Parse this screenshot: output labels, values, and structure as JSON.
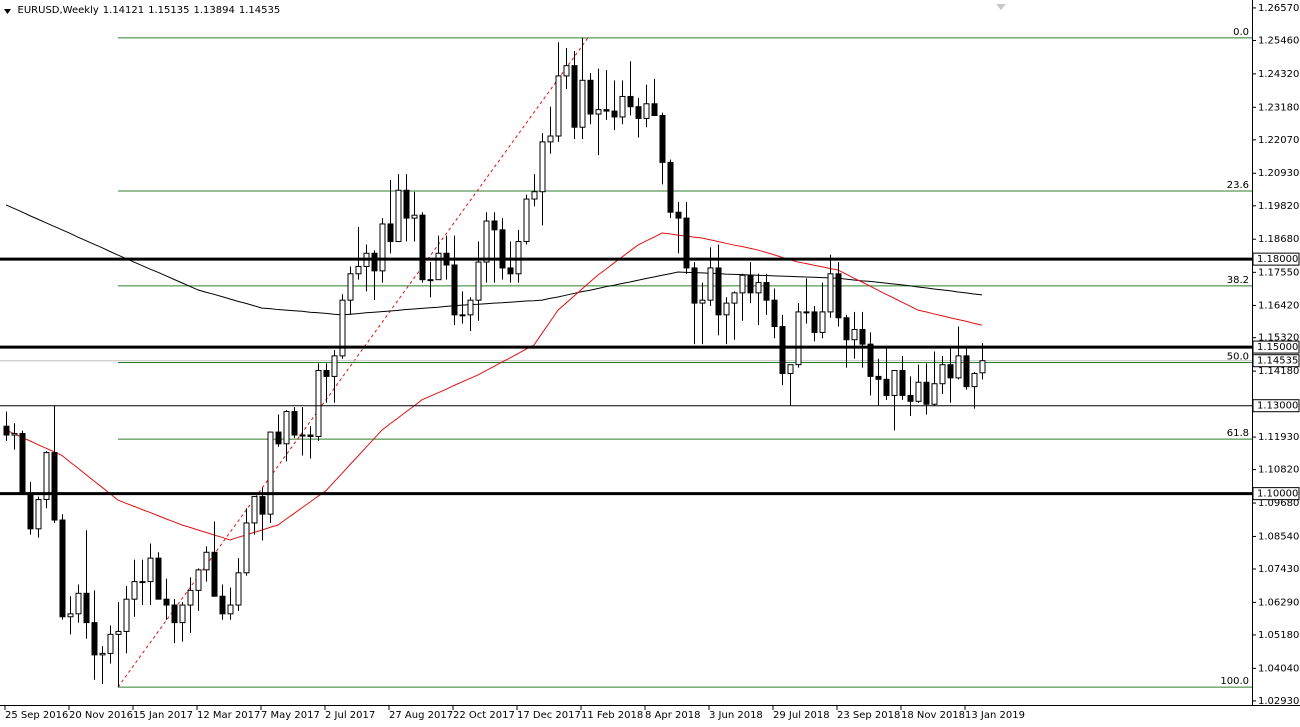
{
  "chart_data": {
    "type": "candlestick",
    "title": "EURUSD,Weekly",
    "categories": [
      "25 Sep 2016",
      null,
      null,
      null,
      null,
      null,
      null,
      null,
      "20 Nov 2016",
      null,
      null,
      null,
      null,
      null,
      null,
      null,
      "15 Jan 2017",
      null,
      null,
      null,
      null,
      null,
      null,
      null,
      "12 Mar 2017",
      null,
      null,
      null,
      null,
      null,
      null,
      null,
      "7 May 2017",
      null,
      null,
      null,
      null,
      null,
      null,
      null,
      "2 Jul 2017",
      null,
      null,
      null,
      null,
      null,
      null,
      null,
      "27 Aug 2017",
      null,
      null,
      null,
      null,
      null,
      null,
      null,
      "22 Oct 2017",
      null,
      null,
      null,
      null,
      null,
      null,
      null,
      "17 Dec 2017",
      null,
      null,
      null,
      null,
      null,
      null,
      null,
      "11 Feb 2018",
      null,
      null,
      null,
      null,
      null,
      null,
      null,
      "8 Apr 2018",
      null,
      null,
      null,
      null,
      null,
      null,
      null,
      "3 Jun 2018",
      null,
      null,
      null,
      null,
      null,
      null,
      null,
      "29 Jul 2018",
      null,
      null,
      null,
      null,
      null,
      null,
      null,
      "23 Sep 2018",
      null,
      null,
      null,
      null,
      null,
      null,
      null,
      "18 Nov 2018",
      null,
      null,
      null,
      null,
      null,
      null,
      null,
      "13 Jan 2019",
      null,
      null
    ],
    "ohlc": [
      [
        1.123,
        1.128,
        1.118,
        1.12
      ],
      [
        1.12,
        1.124,
        1.115,
        1.1205
      ],
      [
        1.1205,
        1.1215,
        1.1,
        1.1
      ],
      [
        1.1,
        1.104,
        1.086,
        1.088
      ],
      [
        1.088,
        1.099,
        1.085,
        1.098
      ],
      [
        1.098,
        1.1145,
        1.095,
        1.114
      ],
      [
        1.114,
        1.13,
        1.09,
        1.091
      ],
      [
        1.091,
        1.093,
        1.057,
        1.058
      ],
      [
        1.058,
        1.065,
        1.052,
        1.059
      ],
      [
        1.059,
        1.069,
        1.056,
        1.066
      ],
      [
        1.066,
        1.0875,
        1.0505,
        1.056
      ],
      [
        1.056,
        1.067,
        1.0365,
        1.045
      ],
      [
        1.045,
        1.048,
        1.035,
        1.0455
      ],
      [
        1.0455,
        1.055,
        1.042,
        1.052
      ],
      [
        1.052,
        1.063,
        1.034,
        1.053
      ],
      [
        1.053,
        1.0685,
        1.0455,
        1.064
      ],
      [
        1.064,
        1.0775,
        1.058,
        1.07
      ],
      [
        1.07,
        1.0775,
        1.062,
        1.07
      ],
      [
        1.07,
        1.083,
        1.062,
        1.078
      ],
      [
        1.078,
        1.08,
        1.064,
        1.064
      ],
      [
        1.064,
        1.071,
        1.057,
        1.062
      ],
      [
        1.062,
        1.064,
        1.049,
        1.056
      ],
      [
        1.056,
        1.063,
        1.0495,
        1.062
      ],
      [
        1.062,
        1.0715,
        1.0525,
        1.067
      ],
      [
        1.067,
        1.0745,
        1.06,
        1.074
      ],
      [
        1.074,
        1.082,
        1.07,
        1.08
      ],
      [
        1.08,
        1.0905,
        1.065,
        1.065
      ],
      [
        1.065,
        1.069,
        1.057,
        1.059
      ],
      [
        1.059,
        1.068,
        1.057,
        1.062
      ],
      [
        1.062,
        1.078,
        1.06,
        1.073
      ],
      [
        1.073,
        1.095,
        1.072,
        1.09
      ],
      [
        1.09,
        1.099,
        1.086,
        1.099
      ],
      [
        1.099,
        1.102,
        1.084,
        1.093
      ],
      [
        1.093,
        1.121,
        1.09,
        1.121
      ],
      [
        1.121,
        1.127,
        1.116,
        1.117
      ],
      [
        1.117,
        1.1285,
        1.111,
        1.128
      ],
      [
        1.128,
        1.1295,
        1.119,
        1.12
      ],
      [
        1.12,
        1.1295,
        1.113,
        1.12
      ],
      [
        1.12,
        1.123,
        1.112,
        1.1195
      ],
      [
        1.1195,
        1.1445,
        1.118,
        1.142
      ],
      [
        1.142,
        1.1445,
        1.131,
        1.14
      ],
      [
        1.14,
        1.149,
        1.131,
        1.147
      ],
      [
        1.147,
        1.168,
        1.146,
        1.166
      ],
      [
        1.166,
        1.1775,
        1.161,
        1.175
      ],
      [
        1.175,
        1.191,
        1.173,
        1.1775
      ],
      [
        1.1775,
        1.185,
        1.169,
        1.182
      ],
      [
        1.182,
        1.183,
        1.166,
        1.176
      ],
      [
        1.176,
        1.194,
        1.172,
        1.192
      ],
      [
        1.192,
        1.207,
        1.182,
        1.186
      ],
      [
        1.186,
        1.209,
        1.186,
        1.2035
      ],
      [
        1.2035,
        1.209,
        1.186,
        1.194
      ],
      [
        1.194,
        1.203,
        1.186,
        1.195
      ],
      [
        1.195,
        1.196,
        1.172,
        1.173
      ],
      [
        1.173,
        1.179,
        1.167,
        1.173
      ],
      [
        1.173,
        1.188,
        1.173,
        1.182
      ],
      [
        1.182,
        1.188,
        1.173,
        1.178
      ],
      [
        1.178,
        1.188,
        1.1575,
        1.161
      ],
      [
        1.161,
        1.169,
        1.158,
        1.161
      ],
      [
        1.161,
        1.167,
        1.1555,
        1.166
      ],
      [
        1.166,
        1.186,
        1.159,
        1.179
      ],
      [
        1.179,
        1.196,
        1.172,
        1.193
      ],
      [
        1.193,
        1.196,
        1.172,
        1.19
      ],
      [
        1.19,
        1.194,
        1.173,
        1.177
      ],
      [
        1.177,
        1.186,
        1.172,
        1.175
      ],
      [
        1.175,
        1.19,
        1.172,
        1.186
      ],
      [
        1.186,
        1.202,
        1.185,
        1.2005
      ],
      [
        1.2005,
        1.209,
        1.198,
        1.203
      ],
      [
        1.203,
        1.223,
        1.1915,
        1.22
      ],
      [
        1.22,
        1.232,
        1.216,
        1.222
      ],
      [
        1.222,
        1.254,
        1.22,
        1.2425
      ],
      [
        1.2425,
        1.252,
        1.238,
        1.246
      ],
      [
        1.246,
        1.251,
        1.221,
        1.225
      ],
      [
        1.225,
        1.2555,
        1.221,
        1.241
      ],
      [
        1.241,
        1.2435,
        1.226,
        1.2295
      ],
      [
        1.2295,
        1.245,
        1.2155,
        1.231
      ],
      [
        1.231,
        1.2445,
        1.2275,
        1.2305
      ],
      [
        1.2305,
        1.241,
        1.224,
        1.2285
      ],
      [
        1.2285,
        1.241,
        1.226,
        1.2355
      ],
      [
        1.2355,
        1.2475,
        1.229,
        1.232
      ],
      [
        1.232,
        1.235,
        1.2215,
        1.228
      ],
      [
        1.228,
        1.2395,
        1.225,
        1.233
      ],
      [
        1.233,
        1.2415,
        1.229,
        1.229
      ],
      [
        1.229,
        1.23,
        1.2055,
        1.213
      ],
      [
        1.213,
        1.214,
        1.194,
        1.196
      ],
      [
        1.196,
        1.1995,
        1.182,
        1.194
      ],
      [
        1.194,
        1.1995,
        1.175,
        1.177
      ],
      [
        1.177,
        1.179,
        1.151,
        1.165
      ],
      [
        1.165,
        1.172,
        1.151,
        1.166
      ],
      [
        1.166,
        1.184,
        1.164,
        1.177
      ],
      [
        1.177,
        1.185,
        1.154,
        1.161
      ],
      [
        1.161,
        1.167,
        1.151,
        1.165
      ],
      [
        1.165,
        1.169,
        1.1525,
        1.1685
      ],
      [
        1.1685,
        1.175,
        1.159,
        1.1745
      ],
      [
        1.1745,
        1.179,
        1.165,
        1.1685
      ],
      [
        1.1685,
        1.175,
        1.1575,
        1.172
      ],
      [
        1.172,
        1.175,
        1.161,
        1.166
      ],
      [
        1.166,
        1.17,
        1.153,
        1.157
      ],
      [
        1.157,
        1.161,
        1.137,
        1.141
      ],
      [
        1.141,
        1.144,
        1.13,
        1.144
      ],
      [
        1.144,
        1.165,
        1.143,
        1.162
      ],
      [
        1.162,
        1.1735,
        1.158,
        1.162
      ],
      [
        1.162,
        1.164,
        1.152,
        1.155
      ],
      [
        1.155,
        1.172,
        1.153,
        1.162
      ],
      [
        1.162,
        1.1815,
        1.16,
        1.175
      ],
      [
        1.175,
        1.179,
        1.157,
        1.16
      ],
      [
        1.16,
        1.161,
        1.143,
        1.1525
      ],
      [
        1.1525,
        1.162,
        1.146,
        1.156
      ],
      [
        1.156,
        1.162,
        1.143,
        1.151
      ],
      [
        1.151,
        1.155,
        1.1335,
        1.14
      ],
      [
        1.14,
        1.146,
        1.13,
        1.139
      ],
      [
        1.139,
        1.15,
        1.132,
        1.1335
      ],
      [
        1.1335,
        1.142,
        1.1216,
        1.142
      ],
      [
        1.142,
        1.147,
        1.132,
        1.1335
      ],
      [
        1.1335,
        1.14,
        1.1265,
        1.1315
      ],
      [
        1.1315,
        1.144,
        1.131,
        1.138
      ],
      [
        1.138,
        1.1445,
        1.127,
        1.1305
      ],
      [
        1.1305,
        1.1485,
        1.13,
        1.1375
      ],
      [
        1.1375,
        1.147,
        1.134,
        1.144
      ],
      [
        1.144,
        1.15,
        1.131,
        1.1395
      ],
      [
        1.1395,
        1.157,
        1.139,
        1.147
      ],
      [
        1.147,
        1.15,
        1.1355,
        1.1365
      ],
      [
        1.1365,
        1.1415,
        1.129,
        1.141
      ],
      [
        1.14121,
        1.15135,
        1.13894,
        1.14535
      ]
    ],
    "up_color": "#ffffff",
    "down_color": "#000000",
    "moving_averages": [
      {
        "color": "#000000",
        "values": [
          1.1985,
          1.1973,
          1.1961,
          1.1948,
          1.1936,
          1.1924,
          1.1912,
          1.19,
          1.1888,
          1.1875,
          1.1863,
          1.1851,
          1.1839,
          1.1826,
          1.1814,
          1.1802,
          1.179,
          1.1778,
          1.1766,
          1.1755,
          1.1743,
          1.1731,
          1.1719,
          1.1707,
          1.1695,
          1.1687,
          1.168,
          1.1672,
          1.1664,
          1.1656,
          1.1649,
          1.1641,
          1.1633,
          1.1631,
          1.1628,
          1.1626,
          1.1624,
          1.1622,
          1.1619,
          1.1617,
          1.1615,
          1.1612,
          1.161,
          1.1612,
          1.1614,
          1.1617,
          1.1619,
          1.1621,
          1.1623,
          1.1625,
          1.1628,
          1.163,
          1.1632,
          1.1634,
          1.1636,
          1.1639,
          1.1641,
          1.1643,
          1.1645,
          1.1646,
          1.1648,
          1.165,
          1.1651,
          1.1653,
          1.1655,
          1.1657,
          1.1658,
          1.166,
          1.1666,
          1.1671,
          1.1677,
          1.1683,
          1.1689,
          1.1694,
          1.17,
          1.1706,
          1.1711,
          1.1717,
          1.1722,
          1.1728,
          1.1734,
          1.1739,
          1.1745,
          1.175,
          1.1756,
          1.1755,
          1.1754,
          1.1753,
          1.1752,
          1.1751,
          1.1749,
          1.1748,
          1.1747,
          1.1746,
          1.1745,
          1.1744,
          1.1743,
          1.1742,
          1.1741,
          1.174,
          1.1739,
          1.1738,
          1.1737,
          1.1736,
          1.1735,
          1.1732,
          1.1729,
          1.1726,
          1.1724,
          1.1721,
          1.1718,
          1.1715,
          1.1712,
          1.1709,
          1.1705,
          1.1702,
          1.1698,
          1.1695,
          1.1692,
          1.1688,
          1.1685,
          1.1681,
          1.1678
        ]
      },
      {
        "color": "#e01010",
        "values": [
          1.1217,
          1.1205,
          1.1192,
          1.118,
          1.1167,
          1.1155,
          1.1143,
          1.113,
          1.1108,
          1.1087,
          1.1065,
          1.1043,
          1.1022,
          1.1,
          1.0978,
          1.0967,
          1.0957,
          1.0946,
          1.0936,
          1.0925,
          1.0914,
          1.0904,
          1.0893,
          1.0885,
          1.0876,
          1.0868,
          1.0859,
          1.0851,
          1.0842,
          1.0851,
          1.0859,
          1.0868,
          1.0876,
          1.0885,
          1.0893,
          1.0913,
          1.0932,
          1.0952,
          1.0971,
          1.0991,
          1.101,
          1.104,
          1.1069,
          1.1099,
          1.1128,
          1.1158,
          1.1187,
          1.1217,
          1.1238,
          1.1258,
          1.1279,
          1.1299,
          1.132,
          1.1332,
          1.1344,
          1.1356,
          1.1369,
          1.1381,
          1.1393,
          1.1405,
          1.142,
          1.1434,
          1.1449,
          1.1463,
          1.1478,
          1.1493,
          1.1507,
          1.1547,
          1.1586,
          1.1626,
          1.165,
          1.1674,
          1.1698,
          1.1722,
          1.1746,
          1.1766,
          1.1787,
          1.1807,
          1.1828,
          1.1848,
          1.1862,
          1.1875,
          1.1889,
          1.1886,
          1.1882,
          1.1879,
          1.1875,
          1.1872,
          1.1866,
          1.186,
          1.1854,
          1.1848,
          1.1843,
          1.1837,
          1.1831,
          1.1823,
          1.1815,
          1.1806,
          1.1798,
          1.179,
          1.1785,
          1.1779,
          1.1774,
          1.1768,
          1.1763,
          1.1749,
          1.1735,
          1.1722,
          1.1708,
          1.1694,
          1.168,
          1.1667,
          1.1653,
          1.164,
          1.1626,
          1.162,
          1.1613,
          1.1607,
          1.16,
          1.1594,
          1.1588,
          1.1581,
          1.1575
        ]
      }
    ],
    "ylim": [
      1.0279,
      1.2684
    ],
    "yticks": [
      {
        "value": 1.2657,
        "label": "1.26570"
      },
      {
        "value": 1.2546,
        "label": "1.25460"
      },
      {
        "value": 1.2432,
        "label": "1.24320"
      },
      {
        "value": 1.2318,
        "label": "1.23180"
      },
      {
        "value": 1.2207,
        "label": "1.22070"
      },
      {
        "value": 1.2093,
        "label": "1.20930"
      },
      {
        "value": 1.1982,
        "label": "1.19820"
      },
      {
        "value": 1.1868,
        "label": "1.18680"
      },
      {
        "value": 1.1755,
        "label": "1.17550"
      },
      {
        "value": 1.1642,
        "label": "1.16420"
      },
      {
        "value": 1.1532,
        "label": "1.15320"
      },
      {
        "value": 1.1418,
        "label": "1.14180"
      },
      {
        "value": 1.1193,
        "label": "1.11930"
      },
      {
        "value": 1.1082,
        "label": "1.10820"
      },
      {
        "value": 1.0968,
        "label": "1.09680"
      },
      {
        "value": 1.0854,
        "label": "1.08540"
      },
      {
        "value": 1.0743,
        "label": "1.07430"
      },
      {
        "value": 1.0629,
        "label": "1.06290"
      },
      {
        "value": 1.0518,
        "label": "1.05180"
      },
      {
        "value": 1.0404,
        "label": "1.04040"
      },
      {
        "value": 1.0293,
        "label": "1.02930"
      }
    ],
    "levels": [
      {
        "value": 1.18,
        "label": "1.18000",
        "width": 3
      },
      {
        "value": 1.15,
        "label": "1.15000",
        "width": 3
      },
      {
        "value": 1.13,
        "label": "1.13000",
        "width": 1
      },
      {
        "value": 1.1,
        "label": "1.10000",
        "width": 3
      }
    ],
    "fibonacci": {
      "color": "#2f7d2f",
      "trend_color": "#e01010",
      "levels": [
        {
          "value": 0,
          "label": "0.0"
        },
        23.6,
        38.2,
        {
          "value": 50,
          "label": "50.0"
        },
        61.8,
        {
          "value": 100,
          "label": "100.0"
        }
      ]
    }
  }
}
